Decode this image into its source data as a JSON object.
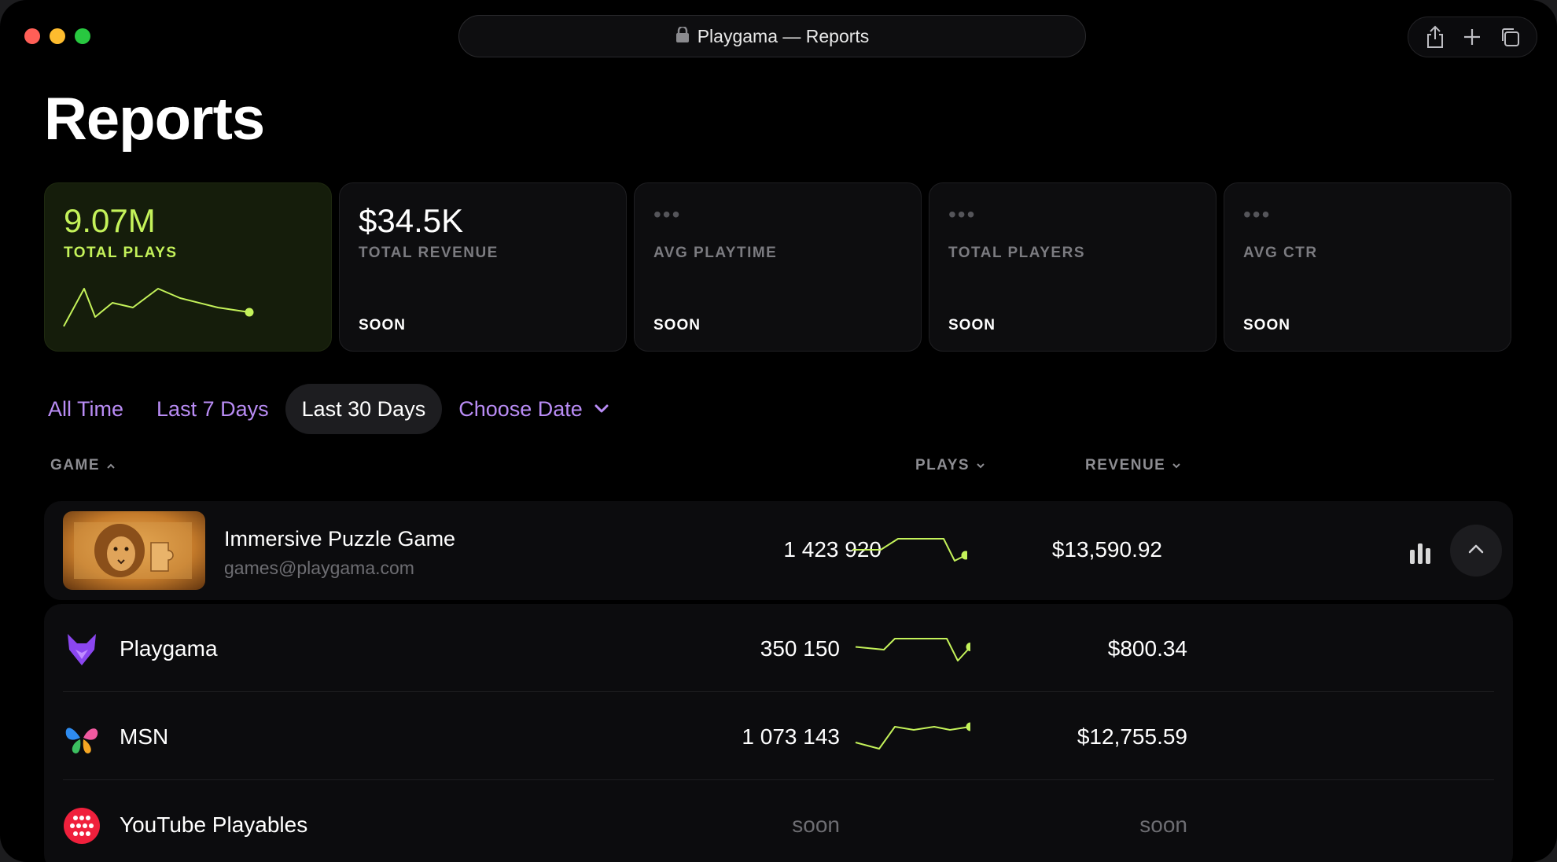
{
  "browser": {
    "url_title": "Playgama — Reports",
    "lock_icon": "lock-icon",
    "actions": [
      "share-icon",
      "plus-icon",
      "tabs-icon"
    ]
  },
  "page": {
    "title": "Reports"
  },
  "stats": [
    {
      "value": "9.07M",
      "label": "TOTAL PLAYS",
      "status": "",
      "active": true,
      "spark": [
        40,
        32,
        38,
        35,
        36,
        32,
        34,
        36,
        37
      ]
    },
    {
      "value": "$34.5K",
      "label": "TOTAL REVENUE",
      "status": "SOON",
      "active": false
    },
    {
      "value": "•••",
      "label": "AVG PLAYTIME",
      "status": "SOON",
      "active": false
    },
    {
      "value": "•••",
      "label": "TOTAL PLAYERS",
      "status": "SOON",
      "active": false
    },
    {
      "value": "•••",
      "label": "AVG CTR",
      "status": "SOON",
      "active": false
    }
  ],
  "filters": [
    {
      "label": "All Time",
      "selected": false
    },
    {
      "label": "Last 7 Days",
      "selected": false
    },
    {
      "label": "Last 30 Days",
      "selected": true
    },
    {
      "label": "Choose Date",
      "selected": false
    }
  ],
  "table": {
    "columns": {
      "game": "GAME",
      "plays": "PLAYS",
      "revenue": "REVENUE"
    },
    "game": {
      "title": "Immersive Puzzle Game",
      "subtitle": "games@playgama.com",
      "plays": "1 423 920",
      "revenue": "$13,590.92",
      "spark": [
        20,
        20,
        28,
        28,
        28,
        12,
        16
      ]
    },
    "platforms": [
      {
        "name": "Playgama",
        "plays": "350 150",
        "revenue": "$800.34",
        "icon": "playgama-fox-icon",
        "spark": [
          24,
          22,
          30,
          30,
          30,
          14,
          24
        ]
      },
      {
        "name": "MSN",
        "plays": "1 073 143",
        "revenue": "$12,755.59",
        "icon": "msn-butterfly-icon",
        "spark": [
          14,
          10,
          24,
          22,
          24,
          22,
          24
        ]
      },
      {
        "name": "YouTube Playables",
        "plays": "soon",
        "revenue": "soon",
        "icon": "youtube-playables-icon"
      }
    ]
  },
  "colors": {
    "accent": "#c4f25a",
    "filter": "#b98cf5"
  }
}
